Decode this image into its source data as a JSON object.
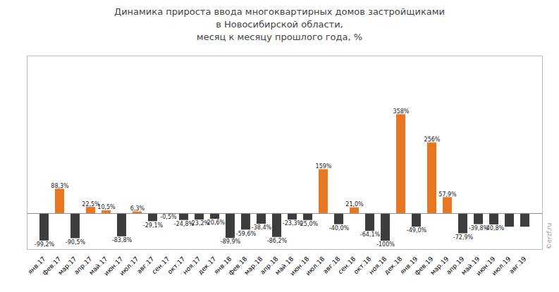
{
  "chart_data": {
    "type": "bar",
    "title": "Динамика прироста ввода многоквартирных домов застройщиками\nв Новосибирской области,\nмесяц к месяцу прошлого года, %",
    "categories": [
      "янв.17",
      "фев.17",
      "мар.17",
      "апр.17",
      "май.17",
      "июн.17",
      "июл.17",
      "авг.17",
      "сен.17",
      "окт.17",
      "ноя.17",
      "дек.17",
      "янв.18",
      "фев.18",
      "мар.18",
      "апр.18",
      "май.18",
      "июн.18",
      "июл.18",
      "авг.18",
      "сен.18",
      "окт.18",
      "ноя.18",
      "дек.18",
      "янв.19",
      "фев.19",
      "мар.19",
      "апр.19",
      "май.19",
      "июн.19",
      "июл.19",
      "авг.19"
    ],
    "values": [
      -99.2,
      88.3,
      -90.5,
      22.5,
      10.5,
      -83.8,
      6.3,
      -29.1,
      -0.5,
      -24.8,
      -23.2,
      -20.6,
      -89.9,
      -59.6,
      -38.4,
      -86.2,
      -23.3,
      -25.0,
      159.0,
      -40.0,
      21.0,
      -64.1,
      -100.0,
      358.0,
      -49.0,
      256.0,
      57.9,
      -72.9,
      -39.8,
      -40.8,
      -49.0,
      -49.0
    ],
    "value_labels": [
      "-99,2%",
      "88,3%",
      "-90,5%",
      "22,5%",
      "10,5%",
      "-83,8%",
      "6,3%",
      "-29,1%",
      "-0,5%",
      "-24,8%",
      "-23,2%",
      "-20,6%",
      "-89,9%",
      "-59,6%",
      "-38,4%",
      "-86,2%",
      "-23,3%",
      "-25,0%",
      "159%",
      "-40,0%",
      "21,0%",
      "-64,1%",
      "-100%",
      "358%",
      "-49,0%",
      "256%",
      "57,9%",
      "-72,9%",
      "-39,8%",
      "-40,8%",
      null,
      null
    ],
    "colors": [
      "#3D3D3D",
      "#E87722",
      "#3D3D3D",
      "#E87722",
      "#E87722",
      "#3D3D3D",
      "#E87722",
      "#3D3D3D",
      "#3D3D3D",
      "#3D3D3D",
      "#3D3D3D",
      "#3D3D3D",
      "#3D3D3D",
      "#3D3D3D",
      "#3D3D3D",
      "#3D3D3D",
      "#3D3D3D",
      "#3D3D3D",
      "#E87722",
      "#3D3D3D",
      "#E87722",
      "#3D3D3D",
      "#3D3D3D",
      "#E87722",
      "#3D3D3D",
      "#E87722",
      "#E87722",
      "#3D3D3D",
      "#3D3D3D",
      "#3D3D3D",
      "#3D3D3D",
      "#3D3D3D"
    ],
    "ylim": [
      -130,
      570
    ],
    "data_labels": true,
    "tick_labels": "x",
    "grid": false,
    "annotation": "©erzf.ru"
  }
}
